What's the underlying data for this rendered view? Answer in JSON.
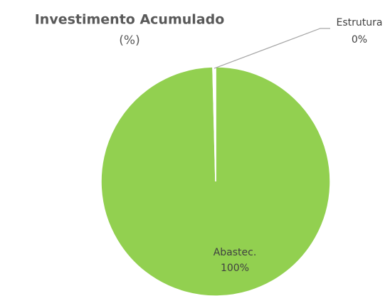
{
  "chart_data": {
    "type": "pie",
    "title": "Investimento Acumulado",
    "subtitle": "(%)",
    "categories": [
      "Abastec.",
      "Estrutura"
    ],
    "values": [
      99.6,
      0.4
    ],
    "value_labels": [
      "100%",
      "0%"
    ],
    "colors": [
      "#92d050",
      "#ffffff"
    ]
  }
}
